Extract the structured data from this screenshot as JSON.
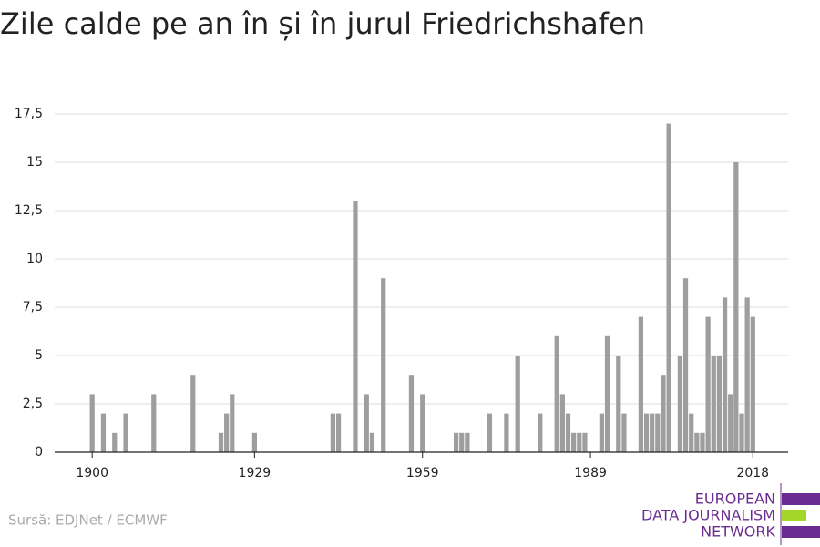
{
  "chart_data": {
    "type": "bar",
    "title": "Zile calde pe an în și în jurul Friedrichshafen",
    "x": [
      1900,
      1901,
      1902,
      1903,
      1904,
      1905,
      1906,
      1907,
      1908,
      1909,
      1910,
      1911,
      1912,
      1913,
      1914,
      1915,
      1916,
      1917,
      1918,
      1919,
      1920,
      1921,
      1922,
      1923,
      1924,
      1925,
      1926,
      1927,
      1928,
      1929,
      1930,
      1931,
      1932,
      1933,
      1934,
      1935,
      1936,
      1937,
      1938,
      1939,
      1940,
      1941,
      1942,
      1943,
      1944,
      1945,
      1946,
      1947,
      1948,
      1949,
      1950,
      1951,
      1952,
      1953,
      1954,
      1955,
      1956,
      1957,
      1958,
      1959,
      1960,
      1961,
      1962,
      1963,
      1964,
      1965,
      1966,
      1967,
      1968,
      1969,
      1970,
      1971,
      1972,
      1973,
      1974,
      1975,
      1976,
      1977,
      1978,
      1979,
      1980,
      1981,
      1982,
      1983,
      1984,
      1985,
      1986,
      1987,
      1988,
      1989,
      1990,
      1991,
      1992,
      1993,
      1994,
      1995,
      1996,
      1997,
      1998,
      1999,
      2000,
      2001,
      2002,
      2003,
      2004,
      2005,
      2006,
      2007,
      2008,
      2009,
      2010,
      2011,
      2012,
      2013,
      2014,
      2015,
      2016,
      2017,
      2018
    ],
    "values": [
      3,
      0,
      2,
      0,
      1,
      0,
      2,
      0,
      0,
      0,
      0,
      3,
      0,
      0,
      0,
      0,
      0,
      0,
      4,
      0,
      0,
      0,
      0,
      1,
      2,
      3,
      0,
      0,
      0,
      1,
      0,
      0,
      0,
      0,
      0,
      0,
      0,
      0,
      0,
      0,
      0,
      0,
      0,
      2,
      2,
      0,
      0,
      13,
      0,
      3,
      1,
      0,
      9,
      0,
      0,
      0,
      0,
      4,
      0,
      3,
      0,
      0,
      0,
      0,
      0,
      1,
      1,
      1,
      0,
      0,
      0,
      2,
      0,
      0,
      2,
      0,
      5,
      0,
      0,
      0,
      2,
      0,
      0,
      6,
      3,
      2,
      1,
      1,
      1,
      0,
      0,
      2,
      6,
      0,
      5,
      2,
      0,
      0,
      7,
      2,
      2,
      2,
      4,
      17,
      0,
      5,
      9,
      2,
      1,
      1,
      7,
      5,
      5,
      8,
      3,
      15,
      2,
      8,
      7
    ],
    "color": "#9e9e9e",
    "xlim": [
      1893.3,
      2024.3
    ],
    "xticks": [
      1900,
      1929,
      1959,
      1989,
      2018
    ],
    "ylim": [
      0,
      17.5
    ],
    "yticks": [
      0,
      {
        "value": 2.5,
        "label": "2,5"
      },
      5,
      {
        "value": 7.5,
        "label": "7,5"
      },
      10,
      {
        "value": 12.5,
        "label": "12,5"
      },
      15,
      {
        "value": 17.5,
        "label": "17,5"
      }
    ],
    "grid": true
  },
  "source": "Sursă: EDJNet / ECMWF",
  "logo": {
    "lines": [
      "EUROPEAN",
      "DATA JOURNALISM",
      "NETWORK"
    ]
  }
}
